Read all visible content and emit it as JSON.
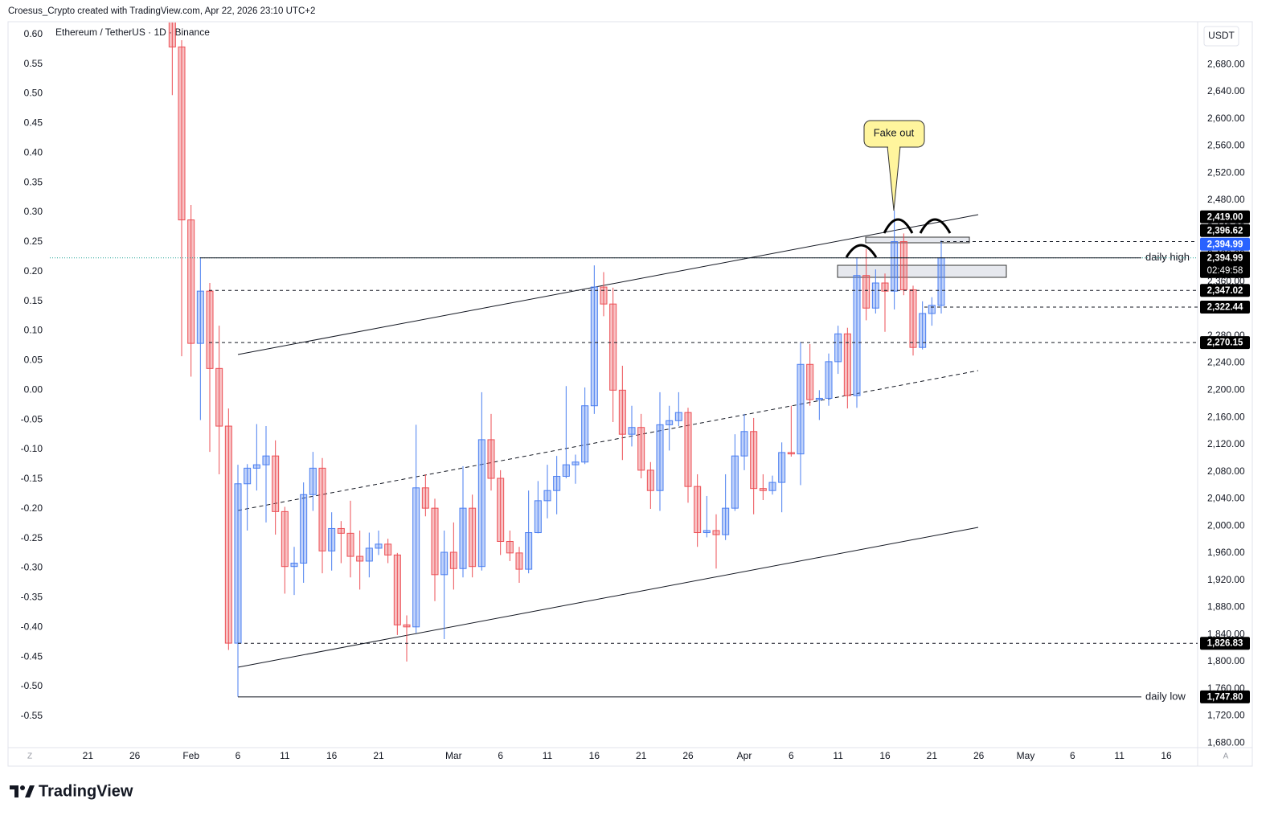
{
  "chart_data": {
    "type": "candlestick",
    "attribution": "Croesus_Crypto created with TradingView.com, Apr 22, 2026 23:10 UTC+2",
    "symbol": "Ethereum / TetherUS · 1D · Binance",
    "currency": "USDT",
    "annotation": "Fake out",
    "logo": "TradingView",
    "axis_icons": [
      "Z",
      "A"
    ],
    "grid": false,
    "up_color": "#4a7ef0",
    "down_color": "#ec4f55",
    "x": [
      "Jan 30",
      "Jan 31",
      "Feb 1",
      "Feb 2",
      "Feb 3",
      "Feb 4",
      "Feb 5",
      "Feb 6",
      "Feb 7",
      "Feb 8",
      "Feb 9",
      "Feb 10",
      "Feb 11",
      "Feb 12",
      "Feb 13",
      "Feb 14",
      "Feb 15",
      "Feb 16",
      "Feb 17",
      "Feb 18",
      "Feb 19",
      "Feb 20",
      "Feb 21",
      "Feb 22",
      "Feb 23",
      "Feb 24",
      "Feb 25",
      "Feb 26",
      "Feb 27",
      "Feb 28",
      "Mar 1",
      "Mar 2",
      "Mar 3",
      "Mar 4",
      "Mar 5",
      "Mar 6",
      "Mar 7",
      "Mar 8",
      "Mar 9",
      "Mar 10",
      "Mar 11",
      "Mar 12",
      "Mar 13",
      "Mar 14",
      "Mar 15",
      "Mar 16",
      "Mar 17",
      "Mar 18",
      "Mar 19",
      "Mar 20",
      "Mar 21",
      "Mar 22",
      "Mar 23",
      "Mar 24",
      "Mar 25",
      "Mar 26",
      "Mar 27",
      "Mar 28",
      "Mar 29",
      "Mar 30",
      "Mar 31",
      "Apr 1",
      "Apr 2",
      "Apr 3",
      "Apr 4",
      "Apr 5",
      "Apr 6",
      "Apr 7",
      "Apr 8",
      "Apr 9",
      "Apr 10",
      "Apr 11",
      "Apr 12",
      "Apr 13",
      "Apr 14",
      "Apr 15",
      "Apr 16",
      "Apr 17",
      "Apr 18",
      "Apr 19",
      "Apr 20",
      "Apr 21",
      "Apr 22"
    ],
    "open": [
      2763,
      2706,
      2451,
      2269,
      2346,
      2232,
      2147,
      1827,
      2062,
      2085,
      2090,
      2103,
      2021,
      1940,
      1945,
      2046,
      2085,
      1963,
      1996,
      1989,
      1955,
      1948,
      1967,
      1973,
      1957,
      1854,
      1851,
      2056,
      2026,
      1928,
      1961,
      1937,
      2026,
      1940,
      2127,
      2070,
      1977,
      1960,
      1936,
      1990,
      2037,
      2052,
      2073,
      2090,
      2094,
      2177,
      2352,
      2327,
      2200,
      2135,
      2145,
      2082,
      2052,
      2149,
      2155,
      2167,
      2058,
      1990,
      1993,
      1987,
      2026,
      2103,
      2139,
      2055,
      2052,
      2064,
      2108,
      2106,
      2238,
      2186,
      2188,
      2242,
      2283,
      2192,
      2369,
      2321,
      2358,
      2346,
      2419,
      2348,
      2263,
      2313,
      2325
    ],
    "high": [
      2775,
      2716,
      2473,
      2396,
      2358,
      2295,
      2173,
      2090,
      2091,
      2150,
      2147,
      2126,
      2028,
      1969,
      2064,
      2109,
      2100,
      2020,
      2007,
      2037,
      1993,
      1990,
      1993,
      1981,
      1960,
      1868,
      2149,
      2076,
      2040,
      1993,
      2005,
      2088,
      2046,
      2197,
      2165,
      2082,
      1993,
      1969,
      2052,
      2066,
      2090,
      2103,
      2206,
      2105,
      2204,
      2384,
      2374,
      2351,
      2236,
      2177,
      2165,
      2094,
      2197,
      2177,
      2197,
      2174,
      2076,
      2044,
      2017,
      2076,
      2135,
      2165,
      2159,
      2076,
      2074,
      2123,
      2177,
      2271,
      2268,
      2200,
      2254,
      2295,
      2292,
      2396,
      2408,
      2378,
      2372,
      2465,
      2431,
      2354,
      2331,
      2337,
      2421
    ],
    "low": [
      2635,
      2250,
      2220,
      2156,
      2109,
      2076,
      1817,
      1748,
      1993,
      2052,
      2005,
      1987,
      1900,
      1898,
      1916,
      2022,
      1930,
      1934,
      1945,
      1924,
      1906,
      1924,
      1957,
      1945,
      1839,
      1800,
      1842,
      2014,
      1889,
      1833,
      1906,
      1924,
      1924,
      1934,
      2052,
      1957,
      1948,
      1916,
      1930,
      1989,
      2011,
      2017,
      2070,
      2062,
      2091,
      2165,
      2309,
      2153,
      2097,
      2117,
      2070,
      2025,
      2022,
      2111,
      2147,
      2034,
      1969,
      1983,
      1937,
      1979,
      2022,
      2082,
      2017,
      2038,
      2046,
      2020,
      2102,
      2060,
      2177,
      2156,
      2177,
      2224,
      2173,
      2174,
      2303,
      2313,
      2286,
      2319,
      2340,
      2251,
      2260,
      2295,
      2313
    ],
    "close": [
      2706,
      2451,
      2269,
      2346,
      2232,
      2147,
      1827,
      2062,
      2085,
      2090,
      2103,
      2021,
      1940,
      1945,
      2046,
      2085,
      1963,
      1996,
      1989,
      1955,
      1948,
      1967,
      1973,
      1957,
      1854,
      1851,
      2056,
      2026,
      1928,
      1961,
      1937,
      2026,
      1940,
      2127,
      2070,
      1977,
      1960,
      1936,
      1990,
      2037,
      2052,
      2073,
      2090,
      2094,
      2177,
      2352,
      2327,
      2200,
      2135,
      2145,
      2082,
      2052,
      2149,
      2155,
      2167,
      2058,
      1990,
      1993,
      1987,
      2026,
      2103,
      2139,
      2055,
      2052,
      2064,
      2108,
      2106,
      2238,
      2186,
      2188,
      2242,
      2283,
      2192,
      2369,
      2321,
      2358,
      2346,
      2419,
      2348,
      2263,
      2313,
      2325,
      2394.99
    ],
    "xlim": [
      "Jan 13",
      "May 19"
    ],
    "xticks": [
      {
        "value": "Jan 21",
        "label": "21"
      },
      {
        "value": "Jan 26",
        "label": "26"
      },
      {
        "value": "Feb 1",
        "label": "Feb"
      },
      {
        "value": "Feb 6",
        "label": "6"
      },
      {
        "value": "Feb 11",
        "label": "11"
      },
      {
        "value": "Feb 16",
        "label": "16"
      },
      {
        "value": "Feb 21",
        "label": "21"
      },
      {
        "value": "Mar 1",
        "label": "Mar"
      },
      {
        "value": "Mar 6",
        "label": "6"
      },
      {
        "value": "Mar 11",
        "label": "11"
      },
      {
        "value": "Mar 16",
        "label": "16"
      },
      {
        "value": "Mar 21",
        "label": "21"
      },
      {
        "value": "Mar 26",
        "label": "26"
      },
      {
        "value": "Apr 1",
        "label": "Apr"
      },
      {
        "value": "Apr 6",
        "label": "6"
      },
      {
        "value": "Apr 11",
        "label": "11"
      },
      {
        "value": "Apr 16",
        "label": "16"
      },
      {
        "value": "Apr 21",
        "label": "21"
      },
      {
        "value": "Apr 26",
        "label": "26"
      },
      {
        "value": "May 1",
        "label": "May"
      },
      {
        "value": "May 6",
        "label": "6"
      },
      {
        "value": "May 11",
        "label": "11"
      },
      {
        "value": "May 16",
        "label": "16"
      }
    ],
    "ylim": [
      1673,
      2742
    ],
    "yticks": [
      {
        "value": 2680,
        "label": "2,680.00"
      },
      {
        "value": 2640,
        "label": "2,640.00"
      },
      {
        "value": 2600,
        "label": "2,600.00"
      },
      {
        "value": 2560,
        "label": "2,560.00"
      },
      {
        "value": 2520,
        "label": "2,520.00"
      },
      {
        "value": 2480,
        "label": "2,480.00"
      },
      {
        "value": 2440,
        "label": "2,440.00"
      },
      {
        "value": 2400,
        "label": "2,400.00"
      },
      {
        "value": 2360,
        "label": "2,360.00"
      },
      {
        "value": 2320,
        "label": "2,320.00"
      },
      {
        "value": 2280,
        "label": "2,280.00"
      },
      {
        "value": 2240,
        "label": "2,240.00"
      },
      {
        "value": 2200,
        "label": "2,200.00"
      },
      {
        "value": 2160,
        "label": "2,160.00"
      },
      {
        "value": 2120,
        "label": "2,120.00"
      },
      {
        "value": 2080,
        "label": "2,080.00"
      },
      {
        "value": 2040,
        "label": "2,040.00"
      },
      {
        "value": 2000,
        "label": "2,000.00"
      },
      {
        "value": 1960,
        "label": "1,960.00"
      },
      {
        "value": 1920,
        "label": "1,920.00"
      },
      {
        "value": 1880,
        "label": "1,880.00"
      },
      {
        "value": 1840,
        "label": "1,840.00"
      },
      {
        "value": 1800,
        "label": "1,800.00"
      },
      {
        "value": 1760,
        "label": "1,760.00"
      },
      {
        "value": 1720,
        "label": "1,720.00"
      },
      {
        "value": 1680,
        "label": "1,680.00"
      }
    ],
    "y2lim": [
      -0.603,
      0.62
    ],
    "y2ticks": [
      {
        "value": 0.6,
        "label": "0.60"
      },
      0.55,
      {
        "value": 0.5,
        "label": "0.50"
      },
      0.45,
      {
        "value": 0.4,
        "label": "0.40"
      },
      0.35,
      {
        "value": 0.3,
        "label": "0.30"
      },
      0.25,
      {
        "value": 0.2,
        "label": "0.20"
      },
      0.15,
      {
        "value": 0.1,
        "label": "0.10"
      },
      0.05,
      {
        "value": 0,
        "label": "0.00"
      },
      -0.05,
      {
        "value": -0.1,
        "label": "-0.10"
      },
      -0.15,
      {
        "value": -0.2,
        "label": "-0.20"
      },
      -0.25,
      {
        "value": -0.3,
        "label": "-0.30"
      },
      -0.35,
      {
        "value": -0.4,
        "label": "-0.40"
      },
      -0.45,
      {
        "value": -0.5,
        "label": "-0.50"
      },
      -0.55
    ],
    "price_tags": [
      {
        "value": 2419,
        "label": "2,419.00",
        "color": "#000000",
        "line": "dashed"
      },
      {
        "value": 2396.62,
        "label": "2,396.62",
        "color": "#000000"
      },
      {
        "value": 2394.99,
        "label": "2,394.99",
        "color": "#2962ff",
        "line": "dotted"
      },
      {
        "value": 2394.99,
        "label": "2,394.99",
        "color": "#000000",
        "line": "solid",
        "text": "daily high",
        "countdown": "02:49:58"
      },
      {
        "value": 2347.02,
        "label": "2,347.02",
        "color": "#000000",
        "line": "dashed"
      },
      {
        "value": 2322.44,
        "label": "2,322.44",
        "color": "#000000",
        "line": "dashed"
      },
      {
        "value": 2270.15,
        "label": "2,270.15",
        "color": "#000000",
        "line": "dashed"
      },
      {
        "value": 1826.83,
        "label": "1,826.83",
        "color": "#000000",
        "line": "dashed"
      },
      {
        "value": 1747.8,
        "label": "1,747.80",
        "color": "#000000",
        "line": "solid",
        "text": "daily low"
      }
    ]
  }
}
